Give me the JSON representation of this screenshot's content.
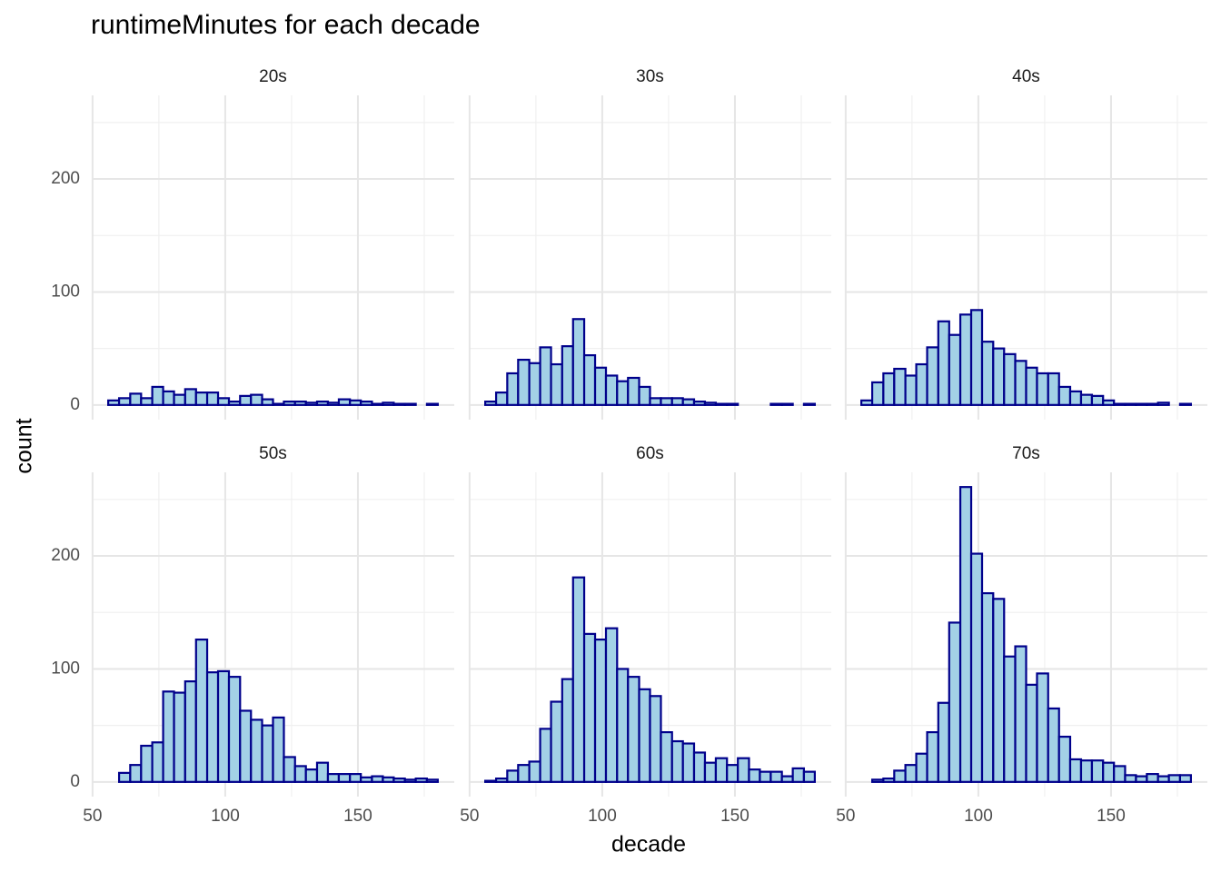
{
  "chart_data": {
    "type": "histogram",
    "title": "runtimeMinutes for each decade",
    "xlabel": "decade",
    "ylabel": "count",
    "xlim": [
      49.7,
      186.3
    ],
    "ylim": [
      -13,
      274
    ],
    "xticks": [
      50,
      100,
      150
    ],
    "yticks": [
      0,
      100,
      200
    ],
    "grid": true,
    "fill": "#a3d1e6",
    "color": "#00008b",
    "bins": [
      55.9,
      60.0,
      64.2,
      68.3,
      72.5,
      76.6,
      80.7,
      84.9,
      89.0,
      93.2,
      97.3,
      101.4,
      105.6,
      109.7,
      113.9,
      118.0,
      122.1,
      126.3,
      130.4,
      134.6,
      138.7,
      142.8,
      147.0,
      151.1,
      155.3,
      159.4,
      163.5,
      167.7,
      171.8,
      176.0,
      180.1
    ],
    "facets": [
      {
        "name": "20s",
        "values": [
          4,
          6,
          10,
          6,
          16,
          12,
          9,
          14,
          11,
          11,
          6,
          3,
          8,
          9,
          5,
          1,
          3,
          3,
          2,
          3,
          2,
          5,
          4,
          3,
          1,
          2,
          1,
          1,
          0,
          1
        ]
      },
      {
        "name": "30s",
        "values": [
          3,
          11,
          28,
          40,
          37,
          51,
          36,
          52,
          76,
          44,
          33,
          26,
          21,
          24,
          16,
          6,
          6,
          6,
          5,
          3,
          2,
          1,
          1,
          0,
          0,
          0,
          1,
          1,
          0,
          1
        ]
      },
      {
        "name": "40s",
        "values": [
          4,
          20,
          28,
          32,
          26,
          36,
          51,
          74,
          62,
          80,
          84,
          56,
          50,
          45,
          39,
          33,
          28,
          28,
          16,
          12,
          9,
          8,
          4,
          1,
          1,
          1,
          1,
          2,
          0,
          1
        ]
      },
      {
        "name": "50s",
        "values": [
          0,
          8,
          15,
          32,
          35,
          80,
          79,
          89,
          126,
          97,
          98,
          93,
          63,
          55,
          50,
          57,
          22,
          14,
          11,
          17,
          7,
          7,
          7,
          4,
          5,
          4,
          3,
          2,
          3,
          2
        ]
      },
      {
        "name": "60s",
        "values": [
          1,
          3,
          10,
          15,
          18,
          47,
          71,
          91,
          181,
          131,
          126,
          136,
          100,
          93,
          82,
          76,
          44,
          36,
          34,
          26,
          17,
          21,
          15,
          21,
          11,
          9,
          9,
          5,
          12,
          9
        ]
      },
      {
        "name": "70s",
        "values": [
          0,
          2,
          3,
          10,
          15,
          25,
          44,
          70,
          141,
          261,
          202,
          167,
          162,
          111,
          120,
          86,
          96,
          65,
          40,
          20,
          19,
          19,
          17,
          14,
          6,
          5,
          7,
          5,
          6,
          6
        ]
      }
    ]
  }
}
